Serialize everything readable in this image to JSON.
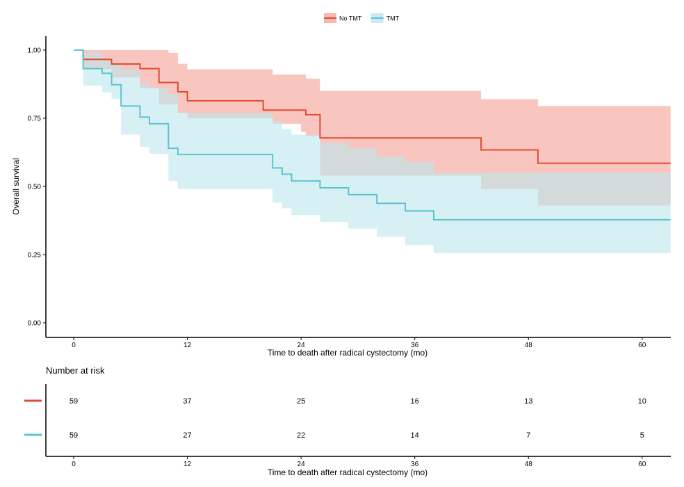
{
  "chart_data": {
    "type": "line",
    "subtype": "kaplan-meier survival curve with 95% confidence bands",
    "ylabel": "Overall survival",
    "xlabel": "Time to death after radical cystectomy (mo)",
    "xlim": [
      0,
      63
    ],
    "ylim": [
      0,
      1
    ],
    "x_ticks": [
      0,
      12,
      24,
      36,
      48,
      60
    ],
    "x_tick_labels": [
      "0",
      "12",
      "24",
      "36",
      "48",
      "60"
    ],
    "y_ticks": [
      0,
      0.25,
      0.5,
      0.75,
      1.0
    ],
    "y_tick_labels": [
      "0.00",
      "0.25",
      "0.50",
      "0.75",
      "1.00"
    ],
    "grid": false,
    "legend_position": "top-center",
    "series": [
      {
        "name": "No TMT",
        "color": "#e34a33",
        "band_color": "#f4a79b",
        "steps": [
          [
            0,
            1.0
          ],
          [
            1,
            0.966
          ],
          [
            4,
            0.949
          ],
          [
            7,
            0.932
          ],
          [
            9,
            0.881
          ],
          [
            11,
            0.847
          ],
          [
            12,
            0.83
          ],
          [
            12,
            0.814
          ],
          [
            20,
            0.814
          ],
          [
            20,
            0.78
          ],
          [
            24,
            0.78
          ],
          [
            24.5,
            0.763
          ],
          [
            26,
            0.763
          ],
          [
            26,
            0.678
          ],
          [
            43,
            0.678
          ],
          [
            43,
            0.634
          ],
          [
            49,
            0.634
          ],
          [
            49,
            0.585
          ],
          [
            63,
            0.585
          ]
        ],
        "upper": [
          [
            0,
            1.0
          ],
          [
            9,
            1.0
          ],
          [
            10,
            0.99
          ],
          [
            11,
            0.95
          ],
          [
            12,
            0.93
          ],
          [
            20,
            0.93
          ],
          [
            21,
            0.91
          ],
          [
            24,
            0.91
          ],
          [
            24.5,
            0.895
          ],
          [
            26,
            0.895
          ],
          [
            26,
            0.85
          ],
          [
            43,
            0.85
          ],
          [
            43,
            0.82
          ],
          [
            49,
            0.82
          ],
          [
            49,
            0.795
          ],
          [
            63,
            0.795
          ]
        ],
        "lower": [
          [
            0,
            1.0
          ],
          [
            1,
            0.93
          ],
          [
            4,
            0.9
          ],
          [
            7,
            0.86
          ],
          [
            9,
            0.8
          ],
          [
            11,
            0.77
          ],
          [
            12,
            0.75
          ],
          [
            20,
            0.75
          ],
          [
            21,
            0.73
          ],
          [
            24,
            0.7
          ],
          [
            24.5,
            0.685
          ],
          [
            26,
            0.66
          ],
          [
            26,
            0.54
          ],
          [
            43,
            0.54
          ],
          [
            43,
            0.49
          ],
          [
            49,
            0.49
          ],
          [
            49,
            0.43
          ],
          [
            63,
            0.43
          ]
        ],
        "number_at_risk": [
          59,
          37,
          25,
          16,
          13,
          10
        ]
      },
      {
        "name": "TMT",
        "color": "#5bc4d1",
        "band_color": "#bde6ec",
        "steps": [
          [
            0,
            1.0
          ],
          [
            1,
            0.932
          ],
          [
            3,
            0.915
          ],
          [
            4,
            0.898
          ],
          [
            4,
            0.873
          ],
          [
            5,
            0.873
          ],
          [
            5,
            0.795
          ],
          [
            7,
            0.795
          ],
          [
            7,
            0.754
          ],
          [
            8,
            0.754
          ],
          [
            8,
            0.73
          ],
          [
            10,
            0.73
          ],
          [
            10,
            0.64
          ],
          [
            11,
            0.64
          ],
          [
            11,
            0.617
          ],
          [
            21,
            0.617
          ],
          [
            21,
            0.568
          ],
          [
            22,
            0.568
          ],
          [
            22,
            0.545
          ],
          [
            23,
            0.545
          ],
          [
            23,
            0.52
          ],
          [
            26,
            0.52
          ],
          [
            26,
            0.495
          ],
          [
            29,
            0.495
          ],
          [
            29,
            0.47
          ],
          [
            32,
            0.47
          ],
          [
            32,
            0.438
          ],
          [
            35,
            0.438
          ],
          [
            35,
            0.41
          ],
          [
            38,
            0.41
          ],
          [
            38,
            0.378
          ],
          [
            63,
            0.378
          ]
        ],
        "upper": [
          [
            0,
            1.0
          ],
          [
            1,
            0.99
          ],
          [
            3,
            0.97
          ],
          [
            4,
            0.95
          ],
          [
            5,
            0.93
          ],
          [
            7,
            0.88
          ],
          [
            8,
            0.86
          ],
          [
            10,
            0.84
          ],
          [
            11,
            0.77
          ],
          [
            21,
            0.74
          ],
          [
            22,
            0.71
          ],
          [
            23,
            0.69
          ],
          [
            26,
            0.66
          ],
          [
            29,
            0.64
          ],
          [
            32,
            0.61
          ],
          [
            35,
            0.59
          ],
          [
            38,
            0.55
          ],
          [
            63,
            0.55
          ]
        ],
        "lower": [
          [
            0,
            1.0
          ],
          [
            1,
            0.87
          ],
          [
            3,
            0.845
          ],
          [
            4,
            0.82
          ],
          [
            5,
            0.69
          ],
          [
            7,
            0.645
          ],
          [
            8,
            0.62
          ],
          [
            10,
            0.52
          ],
          [
            11,
            0.49
          ],
          [
            21,
            0.44
          ],
          [
            22,
            0.42
          ],
          [
            23,
            0.395
          ],
          [
            26,
            0.37
          ],
          [
            29,
            0.345
          ],
          [
            32,
            0.315
          ],
          [
            35,
            0.285
          ],
          [
            38,
            0.255
          ],
          [
            63,
            0.255
          ]
        ],
        "number_at_risk": [
          59,
          27,
          22,
          14,
          7,
          5
        ]
      }
    ],
    "risk_table": {
      "title": "Number at risk",
      "times": [
        0,
        12,
        24,
        36,
        48,
        60
      ],
      "xlabel": "Time to death after radical cystectomy (mo)"
    }
  }
}
